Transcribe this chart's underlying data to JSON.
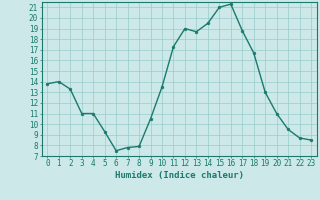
{
  "x": [
    0,
    1,
    2,
    3,
    4,
    5,
    6,
    7,
    8,
    9,
    10,
    11,
    12,
    13,
    14,
    15,
    16,
    17,
    18,
    19,
    20,
    21,
    22,
    23
  ],
  "y": [
    13.8,
    14.0,
    13.3,
    11.0,
    11.0,
    9.3,
    7.5,
    7.8,
    7.9,
    10.5,
    13.5,
    17.3,
    19.0,
    18.7,
    19.5,
    21.0,
    21.3,
    18.8,
    16.7,
    13.0,
    11.0,
    9.5,
    8.7,
    8.5
  ],
  "line_color": "#1a7a6e",
  "marker": "o",
  "marker_size": 2.0,
  "bg_color": "#cce8e8",
  "grid_color": "#99cccc",
  "xlabel": "Humidex (Indice chaleur)",
  "ylim": [
    7,
    21.5
  ],
  "xlim": [
    -0.5,
    23.5
  ],
  "yticks": [
    7,
    8,
    9,
    10,
    11,
    12,
    13,
    14,
    15,
    16,
    17,
    18,
    19,
    20,
    21
  ],
  "xticks": [
    0,
    1,
    2,
    3,
    4,
    5,
    6,
    7,
    8,
    9,
    10,
    11,
    12,
    13,
    14,
    15,
    16,
    17,
    18,
    19,
    20,
    21,
    22,
    23
  ],
  "tick_fontsize": 5.5,
  "label_fontsize": 6.5,
  "linewidth": 1.0
}
